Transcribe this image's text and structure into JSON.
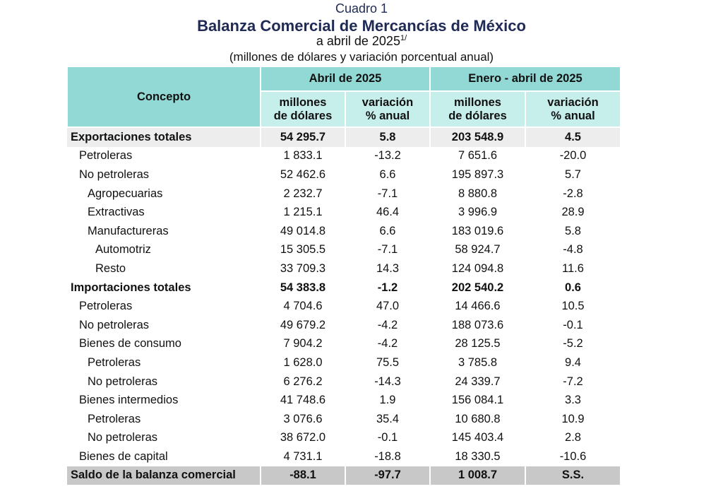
{
  "header": {
    "label": "Cuadro 1",
    "title": "Balanza Comercial de Mercancías de México",
    "subtitle": "a abril de 2025",
    "subtitle_sup": "1/",
    "units": "(millones de dólares y variación porcentual anual)"
  },
  "table": {
    "concept_header": "Concepto",
    "group_headers": [
      "Abril de 2025",
      "Enero - abril de 2025"
    ],
    "sub_headers": [
      [
        "millones",
        "de dólares"
      ],
      [
        "variación",
        "% anual"
      ],
      [
        "millones",
        "de dólares"
      ],
      [
        "variación",
        "% anual"
      ]
    ],
    "rows": [
      {
        "label": "Exportaciones totales",
        "level": 0,
        "style": "total",
        "values": [
          "54 295.7",
          "5.8",
          "203 548.9",
          "4.5"
        ]
      },
      {
        "label": "Petroleras",
        "level": 1,
        "style": "normal",
        "values": [
          "1 833.1",
          "-13.2",
          "7 651.6",
          "-20.0"
        ]
      },
      {
        "label": "No petroleras",
        "level": 1,
        "style": "normal",
        "values": [
          "52 462.6",
          "6.6",
          "195 897.3",
          "5.7"
        ]
      },
      {
        "label": "Agropecuarias",
        "level": 2,
        "style": "normal",
        "values": [
          "2 232.7",
          "-7.1",
          "8 880.8",
          "-2.8"
        ]
      },
      {
        "label": "Extractivas",
        "level": 2,
        "style": "normal",
        "values": [
          "1 215.1",
          "46.4",
          "3 996.9",
          "28.9"
        ]
      },
      {
        "label": "Manufactureras",
        "level": 2,
        "style": "normal",
        "values": [
          "49 014.8",
          "6.6",
          "183 019.6",
          "5.8"
        ]
      },
      {
        "label": "Automotriz",
        "level": 3,
        "style": "normal",
        "values": [
          "15 305.5",
          "-7.1",
          "58 924.7",
          "-4.8"
        ]
      },
      {
        "label": "Resto",
        "level": 3,
        "style": "normal",
        "values": [
          "33 709.3",
          "14.3",
          "124 094.8",
          "11.6"
        ]
      },
      {
        "label": "Importaciones totales",
        "level": 0,
        "style": "bold",
        "values": [
          "54 383.8",
          "-1.2",
          "202 540.2",
          "0.6"
        ]
      },
      {
        "label": "Petroleras",
        "level": 1,
        "style": "normal",
        "values": [
          "4 704.6",
          "47.0",
          "14 466.6",
          "10.5"
        ]
      },
      {
        "label": "No petroleras",
        "level": 1,
        "style": "normal",
        "values": [
          "49 679.2",
          "-4.2",
          "188 073.6",
          "-0.1"
        ]
      },
      {
        "label": "Bienes de consumo",
        "level": 1,
        "style": "normal",
        "values": [
          "7 904.2",
          "-4.2",
          "28 125.5",
          "-5.2"
        ]
      },
      {
        "label": "Petroleras",
        "level": 2,
        "style": "normal",
        "values": [
          "1 628.0",
          "75.5",
          "3 785.8",
          "9.4"
        ]
      },
      {
        "label": "No petroleras",
        "level": 2,
        "style": "normal",
        "values": [
          "6 276.2",
          "-14.3",
          "24 339.7",
          "-7.2"
        ]
      },
      {
        "label": "Bienes intermedios",
        "level": 1,
        "style": "normal",
        "values": [
          "41 748.6",
          "1.9",
          "156 084.1",
          "3.3"
        ]
      },
      {
        "label": "Petroleras",
        "level": 2,
        "style": "normal",
        "values": [
          "3 076.6",
          "35.4",
          "10 680.8",
          "10.9"
        ]
      },
      {
        "label": "No petroleras",
        "level": 2,
        "style": "normal",
        "values": [
          "38 672.0",
          "-0.1",
          "145 403.4",
          "2.8"
        ]
      },
      {
        "label": "Bienes de capital",
        "level": 1,
        "style": "normal",
        "values": [
          "4 731.1",
          "-18.8",
          "18 330.5",
          "-10.6"
        ]
      },
      {
        "label": "Saldo de la balanza comercial",
        "level": 0,
        "style": "saldo",
        "values": [
          "-88.1",
          "-97.7",
          "1 008.7",
          "S.S."
        ]
      }
    ]
  },
  "colors": {
    "header_dark": "#92d9d5",
    "header_light": "#c6eeeb",
    "total_row": "#ededed",
    "saldo_row": "#c8c8c8",
    "title": "#1f2a55"
  }
}
